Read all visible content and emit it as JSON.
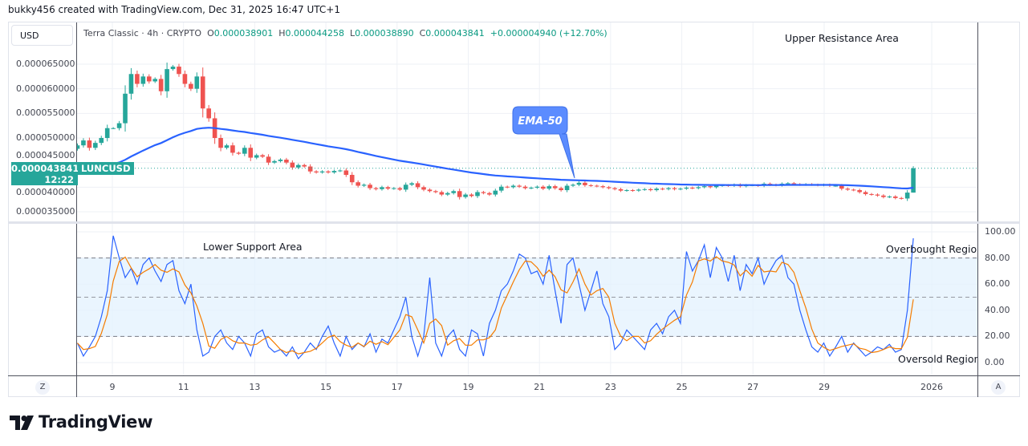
{
  "credit": "bukky456 created with TradingView.com, Dec 31, 2025 16:47 UTC+1",
  "currency_button": "USD",
  "legend": {
    "symbol_info": "Terra Classic · 4h · CRYPTO",
    "open_label": "O",
    "open": "0.000038901",
    "high_label": "H",
    "high": "0.000044258",
    "low_label": "L",
    "low": "0.000038890",
    "close_label": "C",
    "close": "0.000043841",
    "change": "+0.000004940 (+12.70%)"
  },
  "price_tag": {
    "price": "0.000043841",
    "countdown": "12:22",
    "symbol": "LUNCUSD"
  },
  "annotations": {
    "upper": "Upper Resistance Area",
    "lower": "Lower Support Area",
    "overbought": "Overbought Region",
    "oversold": "Oversold Region",
    "ema_callout": "EMA-50"
  },
  "buttons": {
    "z": "Z",
    "a": "A"
  },
  "logo": "TradingView",
  "colors": {
    "up": "#26a69a",
    "down": "#ef5350",
    "ema": "#2962ff",
    "k_line": "#2962ff",
    "d_line": "#f57c00",
    "band": "#e3f2fd",
    "callout": "#5b8cff"
  },
  "chart_data": [
    {
      "type": "candlestick",
      "interval": "4h",
      "x_start": "Dec 8, 2025 00:00",
      "y_ticks": [
        "0.000065000",
        "0.000060000",
        "0.000055000",
        "0.000050000",
        "0.000045000",
        "0.000040000",
        "0.000035000"
      ],
      "ylim": [
        3.35e-05,
        6.95e-05
      ],
      "x_ticks": [
        "9",
        "11",
        "13",
        "15",
        "17",
        "19",
        "21",
        "23",
        "25",
        "27",
        "29",
        "2026"
      ],
      "grid": true,
      "overlay": "EMA-50",
      "close": [
        4.85e-05,
        4.95e-05,
        4.8e-05,
        4.9e-05,
        5e-05,
        5.2e-05,
        5.2e-05,
        5.3e-05,
        5.9e-05,
        6.3e-05,
        6.1e-05,
        6.25e-05,
        6.15e-05,
        6.2e-05,
        5.95e-05,
        6.4e-05,
        6.45e-05,
        6.3e-05,
        6.1e-05,
        6e-05,
        6.25e-05,
        5.6e-05,
        5.4e-05,
        5e-05,
        4.8e-05,
        4.85e-05,
        4.7e-05,
        4.68e-05,
        4.8e-05,
        4.6e-05,
        4.65e-05,
        4.62e-05,
        4.5e-05,
        4.53e-05,
        4.56e-05,
        4.5e-05,
        4.4e-05,
        4.45e-05,
        4.42e-05,
        4.32e-05,
        4.3e-05,
        4.32e-05,
        4.3e-05,
        4.33e-05,
        4.34e-05,
        4.25e-05,
        4.1e-05,
        4.03e-05,
        4.05e-05,
        3.98e-05,
        3.96e-05,
        4e-05,
        3.97e-05,
        3.98e-05,
        3.95e-05,
        4.05e-05,
        4.08e-05,
        4e-05,
        3.95e-05,
        3.92e-05,
        3.9e-05,
        3.85e-05,
        3.88e-05,
        3.92e-05,
        3.8e-05,
        3.85e-05,
        3.82e-05,
        3.9e-05,
        3.88e-05,
        3.85e-05,
        3.93e-05,
        4.01e-05,
        4e-05,
        4.03e-05,
        4.01e-05,
        3.98e-05,
        3.99e-05,
        4.01e-05,
        3.97e-05,
        4.02e-05,
        3.98e-05,
        3.94e-05,
        4.03e-05,
        4.05e-05,
        4.09e-05,
        4.04e-05,
        4.03e-05,
        4.02e-05,
        4e-05,
        3.98e-05,
        3.96e-05,
        3.93e-05,
        3.94e-05,
        3.93e-05,
        3.95e-05,
        3.96e-05,
        3.94e-05,
        3.97e-05,
        3.96e-05,
        3.98e-05,
        3.96e-05,
        3.97e-05,
        3.99e-05,
        3.98e-05,
        4e-05,
        4.02e-05,
        4e-05,
        4.03e-05,
        4.04e-05,
        4.03e-05,
        4.05e-05,
        4.02e-05,
        4.04e-05,
        4.04e-05,
        4.03e-05,
        4.07e-05,
        4.05e-05,
        4.04e-05,
        4.07e-05,
        4.08e-05,
        4.06e-05,
        4.05e-05,
        4.06e-05,
        4.05e-05,
        4.04e-05,
        4.05e-05,
        4.03e-05,
        4.03e-05,
        3.97e-05,
        3.95e-05,
        3.94e-05,
        3.9e-05,
        3.86e-05,
        3.85e-05,
        3.83e-05,
        3.8e-05,
        3.81e-05,
        3.78e-05,
        3.77e-05,
        3.89e-05,
        4.3841e-05
      ]
    },
    {
      "type": "line",
      "indicator": "Stochastic RSI",
      "y_ticks": [
        "100.00",
        "80.00",
        "60.00",
        "40.00",
        "20.00",
        "0.00"
      ],
      "ylim": [
        0,
        100
      ],
      "levels": [
        80,
        50,
        20
      ],
      "k": [
        15,
        5,
        12,
        20,
        35,
        55,
        97,
        80,
        65,
        72,
        60,
        75,
        80,
        70,
        62,
        75,
        78,
        55,
        45,
        60,
        25,
        5,
        8,
        20,
        25,
        15,
        10,
        20,
        15,
        5,
        22,
        25,
        12,
        8,
        10,
        5,
        12,
        3,
        8,
        15,
        10,
        20,
        28,
        15,
        5,
        20,
        10,
        15,
        12,
        22,
        8,
        18,
        15,
        25,
        35,
        50,
        20,
        5,
        20,
        65,
        15,
        5,
        20,
        25,
        10,
        5,
        25,
        22,
        5,
        30,
        40,
        55,
        60,
        70,
        83,
        80,
        68,
        70,
        60,
        82,
        55,
        30,
        75,
        80,
        60,
        40,
        55,
        70,
        45,
        35,
        10,
        15,
        25,
        20,
        15,
        10,
        25,
        30,
        22,
        35,
        40,
        30,
        85,
        70,
        78,
        90,
        65,
        88,
        80,
        62,
        82,
        55,
        75,
        68,
        80,
        60,
        70,
        78,
        82,
        65,
        60,
        40,
        25,
        12,
        8,
        15,
        5,
        12,
        20,
        8,
        15,
        10,
        5,
        8,
        12,
        10,
        14,
        8,
        10,
        40,
        95
      ]
    }
  ]
}
